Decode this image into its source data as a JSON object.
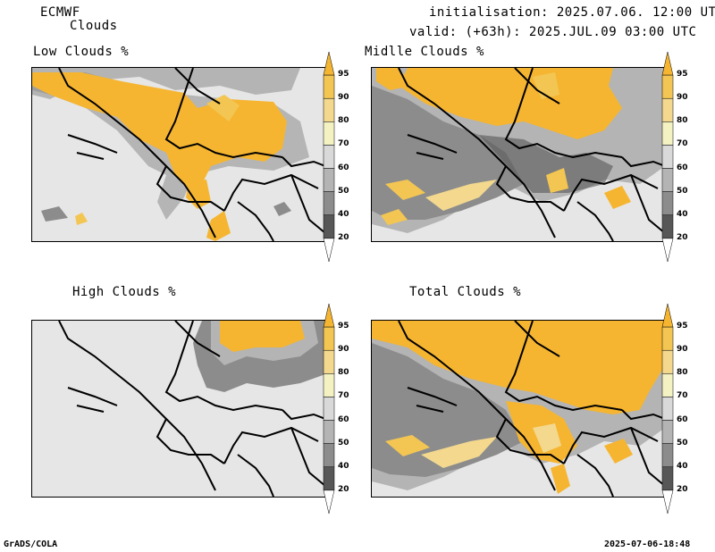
{
  "header": {
    "model": "ECMWF",
    "product": "Clouds",
    "init_line": "initialisation: 2025.07.06. 12:00 UTC",
    "valid_line": "valid: (+63h): 2025.JUL.09 03:00 UTC"
  },
  "panels": [
    {
      "title": "Low Clouds %"
    },
    {
      "title": "Midlle Clouds %"
    },
    {
      "title": "High Clouds %"
    },
    {
      "title": "Total Clouds %"
    }
  ],
  "colorbar": {
    "levels": [
      "95",
      "90",
      "80",
      "70",
      "60",
      "50",
      "40",
      "20"
    ],
    "colors": [
      "#f5b531",
      "#f3c653",
      "#f3d88e",
      "#f4f2c3",
      "#d9d9d9",
      "#b4b4b4",
      "#8c8c8c",
      "#575757",
      "#ffffff"
    ]
  },
  "footer": {
    "software": "GrADS/COLA",
    "timestamp": "2025-07-06-18:48"
  }
}
